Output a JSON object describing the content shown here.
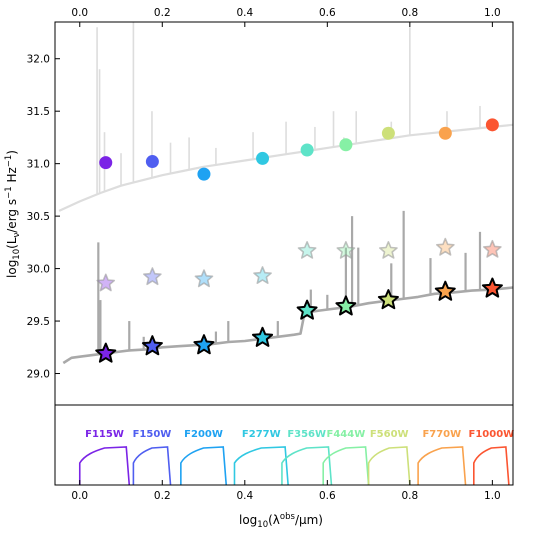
{
  "chart_data": [
    {
      "type": "line",
      "panel": "sed",
      "xlabel_main": "log",
      "xlabel_sub": "10",
      "xlabel_paren_open": "(λ",
      "xlabel_sup": "obs",
      "xlabel_tail": "/μm)",
      "ylabel_main": "log",
      "ylabel_sub": "10",
      "ylabel_rest": "(L",
      "ylabel_nu": "ν",
      "ylabel_unit1": "/erg s",
      "ylabel_exp1": "−1",
      "ylabel_unit2": " Hz",
      "ylabel_exp2": "−1",
      "ylabel_close": ")",
      "xlim": [
        -0.06,
        1.05
      ],
      "ylim": [
        28.7,
        32.35
      ],
      "xticks": [
        0.0,
        0.2,
        0.4,
        0.6,
        0.8,
        1.0
      ],
      "xtick_labels": [
        "0.0",
        "0.2",
        "0.4",
        "0.6",
        "0.8",
        "1.0"
      ],
      "top_xtick_labels": [
        "0.0",
        "0.2",
        "0.4",
        "0.6",
        "0.8",
        "1.0"
      ],
      "yticks": [
        29.0,
        29.5,
        30.0,
        30.5,
        31.0,
        31.5,
        32.0
      ],
      "ytick_labels": [
        "29.0",
        "29.5",
        "30.0",
        "30.5",
        "31.0",
        "31.5",
        "32.0"
      ],
      "grid": false,
      "series": [
        {
          "style": "circle-markers",
          "points": [
            {
              "x": 0.063,
              "y": 31.01,
              "color": "#7b24e6"
            },
            {
              "x": 0.176,
              "y": 31.02,
              "color": "#4f5ef0"
            },
            {
              "x": 0.301,
              "y": 30.9,
              "color": "#1ea2f2"
            },
            {
              "x": 0.443,
              "y": 31.05,
              "color": "#30c8e2"
            },
            {
              "x": 0.551,
              "y": 31.13,
              "color": "#5ee3c8"
            },
            {
              "x": 0.645,
              "y": 31.18,
              "color": "#86f0a5"
            },
            {
              "x": 0.748,
              "y": 31.29,
              "color": "#cde07a"
            },
            {
              "x": 0.886,
              "y": 31.29,
              "color": "#f9a24d"
            },
            {
              "x": 1.0,
              "y": 31.37,
              "color": "#fb5531"
            }
          ]
        },
        {
          "style": "faded-star-markers",
          "points": [
            {
              "x": 0.063,
              "y": 29.86,
              "color": "#7b24e6"
            },
            {
              "x": 0.176,
              "y": 29.92,
              "color": "#4f5ef0"
            },
            {
              "x": 0.301,
              "y": 29.9,
              "color": "#1ea2f2"
            },
            {
              "x": 0.443,
              "y": 29.93,
              "color": "#30c8e2"
            },
            {
              "x": 0.551,
              "y": 30.17,
              "color": "#5ee3c8"
            },
            {
              "x": 0.645,
              "y": 30.17,
              "color": "#86f0a5"
            },
            {
              "x": 0.748,
              "y": 30.17,
              "color": "#cde07a"
            },
            {
              "x": 0.886,
              "y": 30.2,
              "color": "#f9a24d"
            },
            {
              "x": 1.0,
              "y": 30.18,
              "color": "#fb5531"
            }
          ]
        },
        {
          "style": "star-markers",
          "points": [
            {
              "x": 0.063,
              "y": 29.19,
              "color": "#7b24e6"
            },
            {
              "x": 0.176,
              "y": 29.26,
              "color": "#4f5ef0"
            },
            {
              "x": 0.301,
              "y": 29.27,
              "color": "#1ea2f2"
            },
            {
              "x": 0.443,
              "y": 29.34,
              "color": "#30c8e2"
            },
            {
              "x": 0.551,
              "y": 29.6,
              "color": "#5ee3c8"
            },
            {
              "x": 0.645,
              "y": 29.64,
              "color": "#86f0a5"
            },
            {
              "x": 0.748,
              "y": 29.7,
              "color": "#cde07a"
            },
            {
              "x": 0.886,
              "y": 29.78,
              "color": "#f9a24d"
            },
            {
              "x": 1.0,
              "y": 29.81,
              "color": "#fb5531"
            }
          ]
        },
        {
          "style": "light-gray-spectrum",
          "color": "#dddddd",
          "continuum": [
            {
              "x": -0.05,
              "y": 30.55
            },
            {
              "x": 0.0,
              "y": 30.64
            },
            {
              "x": 0.05,
              "y": 30.72
            },
            {
              "x": 0.1,
              "y": 30.79
            },
            {
              "x": 0.15,
              "y": 30.84
            },
            {
              "x": 0.2,
              "y": 30.89
            },
            {
              "x": 0.25,
              "y": 30.93
            },
            {
              "x": 0.3,
              "y": 30.97
            },
            {
              "x": 0.35,
              "y": 31.0
            },
            {
              "x": 0.4,
              "y": 31.03
            },
            {
              "x": 0.45,
              "y": 31.06
            },
            {
              "x": 0.5,
              "y": 31.09
            },
            {
              "x": 0.55,
              "y": 31.12
            },
            {
              "x": 0.6,
              "y": 31.15
            },
            {
              "x": 0.65,
              "y": 31.18
            },
            {
              "x": 0.7,
              "y": 31.21
            },
            {
              "x": 0.75,
              "y": 31.24
            },
            {
              "x": 0.8,
              "y": 31.27
            },
            {
              "x": 0.85,
              "y": 31.29
            },
            {
              "x": 0.9,
              "y": 31.31
            },
            {
              "x": 0.95,
              "y": 31.33
            },
            {
              "x": 1.0,
              "y": 31.35
            },
            {
              "x": 1.05,
              "y": 31.37
            }
          ],
          "lines": [
            {
              "x": 0.042,
              "y": 32.3
            },
            {
              "x": 0.048,
              "y": 31.9
            },
            {
              "x": 0.06,
              "y": 31.3
            },
            {
              "x": 0.1,
              "y": 31.1
            },
            {
              "x": 0.13,
              "y": 32.35
            },
            {
              "x": 0.175,
              "y": 31.5
            },
            {
              "x": 0.22,
              "y": 31.2
            },
            {
              "x": 0.265,
              "y": 31.25
            },
            {
              "x": 0.33,
              "y": 31.15
            },
            {
              "x": 0.42,
              "y": 31.3
            },
            {
              "x": 0.5,
              "y": 31.4
            },
            {
              "x": 0.57,
              "y": 31.35
            },
            {
              "x": 0.615,
              "y": 31.5
            },
            {
              "x": 0.64,
              "y": 31.25
            },
            {
              "x": 0.67,
              "y": 31.5
            },
            {
              "x": 0.755,
              "y": 31.4
            },
            {
              "x": 0.8,
              "y": 32.3
            },
            {
              "x": 0.89,
              "y": 31.5
            },
            {
              "x": 0.97,
              "y": 31.55
            }
          ]
        },
        {
          "style": "dark-gray-spectrum",
          "color": "#a9a9a9",
          "continuum": [
            {
              "x": -0.04,
              "y": 29.1
            },
            {
              "x": -0.02,
              "y": 29.15
            },
            {
              "x": 0.0,
              "y": 29.16
            },
            {
              "x": 0.04,
              "y": 29.18
            },
            {
              "x": 0.08,
              "y": 29.2
            },
            {
              "x": 0.12,
              "y": 29.22
            },
            {
              "x": 0.16,
              "y": 29.23
            },
            {
              "x": 0.2,
              "y": 29.25
            },
            {
              "x": 0.24,
              "y": 29.26
            },
            {
              "x": 0.28,
              "y": 29.27
            },
            {
              "x": 0.32,
              "y": 29.28
            },
            {
              "x": 0.36,
              "y": 29.3
            },
            {
              "x": 0.4,
              "y": 29.31
            },
            {
              "x": 0.44,
              "y": 29.33
            },
            {
              "x": 0.48,
              "y": 29.35
            },
            {
              "x": 0.52,
              "y": 29.37
            },
            {
              "x": 0.535,
              "y": 29.38
            },
            {
              "x": 0.545,
              "y": 29.58
            },
            {
              "x": 0.58,
              "y": 29.6
            },
            {
              "x": 0.62,
              "y": 29.62
            },
            {
              "x": 0.66,
              "y": 29.64
            },
            {
              "x": 0.7,
              "y": 29.67
            },
            {
              "x": 0.74,
              "y": 29.69
            },
            {
              "x": 0.78,
              "y": 29.71
            },
            {
              "x": 0.82,
              "y": 29.73
            },
            {
              "x": 0.86,
              "y": 29.76
            },
            {
              "x": 0.9,
              "y": 29.77
            },
            {
              "x": 0.95,
              "y": 29.79
            },
            {
              "x": 1.0,
              "y": 29.8
            },
            {
              "x": 1.05,
              "y": 29.82
            }
          ],
          "lines": [
            {
              "x": 0.045,
              "y": 30.25
            },
            {
              "x": 0.05,
              "y": 29.7
            },
            {
              "x": 0.12,
              "y": 29.5
            },
            {
              "x": 0.155,
              "y": 29.35
            },
            {
              "x": 0.33,
              "y": 29.4
            },
            {
              "x": 0.36,
              "y": 29.5
            },
            {
              "x": 0.48,
              "y": 29.5
            },
            {
              "x": 0.56,
              "y": 29.8
            },
            {
              "x": 0.6,
              "y": 29.75
            },
            {
              "x": 0.645,
              "y": 30.2
            },
            {
              "x": 0.66,
              "y": 30.5
            },
            {
              "x": 0.675,
              "y": 30.2
            },
            {
              "x": 0.755,
              "y": 30.05
            },
            {
              "x": 0.785,
              "y": 30.55
            },
            {
              "x": 0.85,
              "y": 30.1
            },
            {
              "x": 0.935,
              "y": 30.15
            },
            {
              "x": 0.97,
              "y": 30.35
            }
          ]
        }
      ]
    },
    {
      "type": "line",
      "panel": "filters",
      "xlim": [
        -0.06,
        1.05
      ],
      "filters": [
        {
          "name": "F115W",
          "lo": 0.0,
          "hi": 0.12,
          "color": "#7b24e6"
        },
        {
          "name": "F150W",
          "lo": 0.13,
          "hi": 0.22,
          "color": "#4f5ef0"
        },
        {
          "name": "F200W",
          "lo": 0.245,
          "hi": 0.355,
          "color": "#1ea2f2"
        },
        {
          "name": "F277W",
          "lo": 0.375,
          "hi": 0.505,
          "color": "#30c8e2"
        },
        {
          "name": "F356W",
          "lo": 0.49,
          "hi": 0.61,
          "color": "#5ee3c8"
        },
        {
          "name": "F444W",
          "lo": 0.59,
          "hi": 0.7,
          "color": "#86f0a5"
        },
        {
          "name": "F560W",
          "lo": 0.7,
          "hi": 0.8,
          "color": "#cde07a"
        },
        {
          "name": "F770W",
          "lo": 0.82,
          "hi": 0.935,
          "color": "#f9a24d"
        },
        {
          "name": "F1000W",
          "lo": 0.955,
          "hi": 1.04,
          "color": "#fb5531"
        }
      ]
    }
  ]
}
